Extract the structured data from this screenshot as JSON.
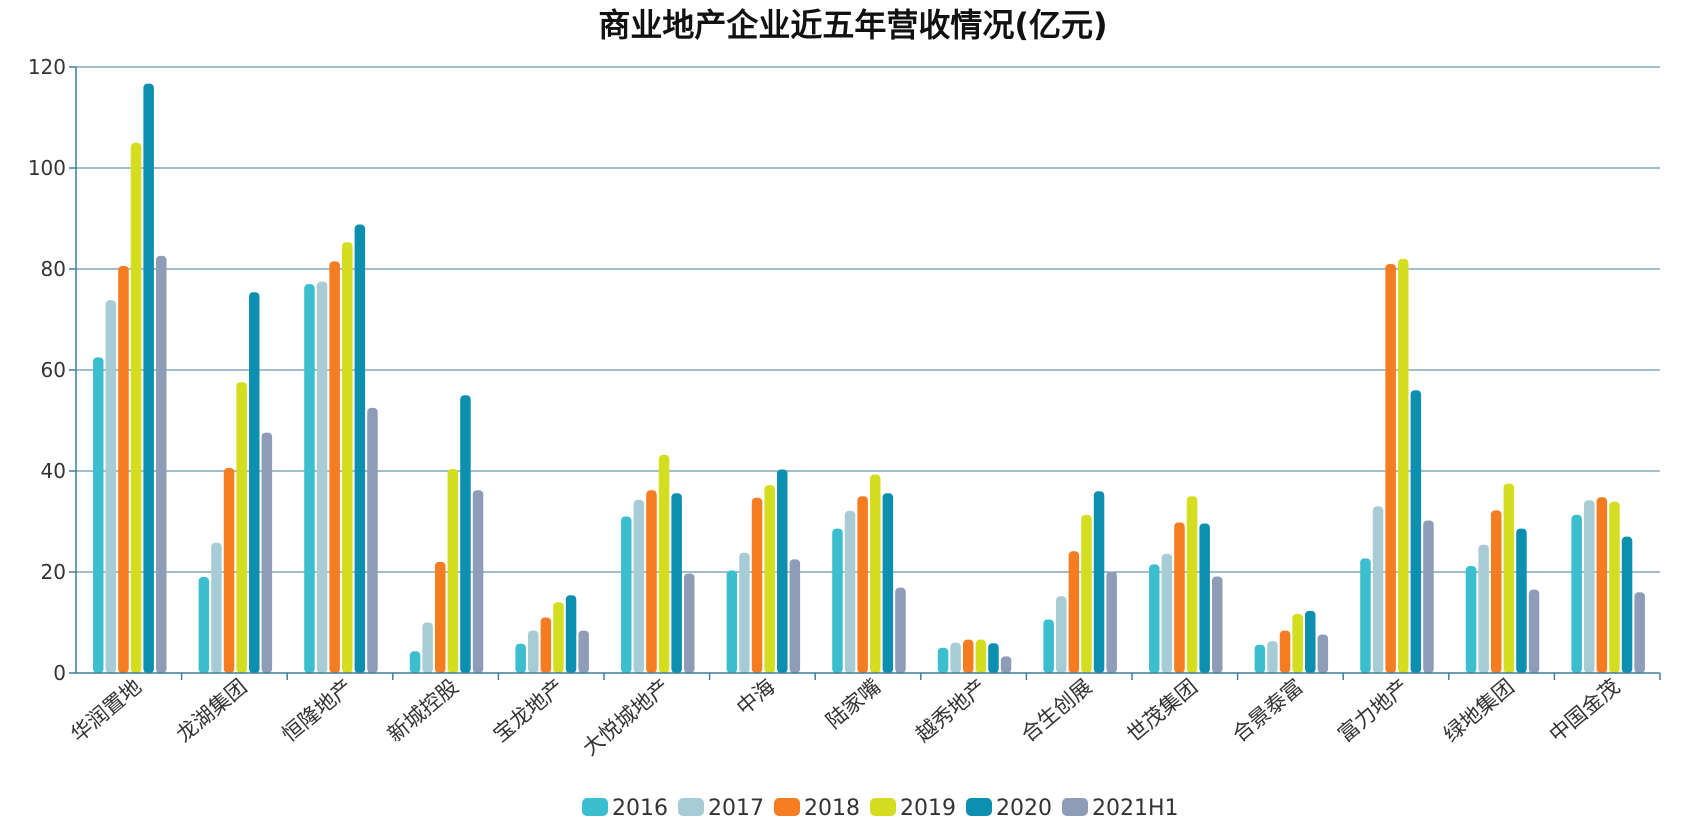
{
  "chart_data": {
    "type": "bar",
    "title": "商业地产企业近五年营收情况(亿元)",
    "xlabel": "",
    "ylabel": "",
    "ylim": [
      0,
      120
    ],
    "yticks": [
      0,
      20,
      40,
      60,
      80,
      100,
      120
    ],
    "grid": true,
    "legend_position": "bottom",
    "categories": [
      "华润置地",
      "龙湖集团",
      "恒隆地产",
      "新城控股",
      "宝龙地产",
      "大悦城地产",
      "中海",
      "陆家嘴",
      "越秀地产",
      "合生创展",
      "世茂集团",
      "合景泰富",
      "富力地产",
      "绿地集团",
      "中国金茂"
    ],
    "series": [
      {
        "name": "2016",
        "color": "#3bbfcf",
        "values": [
          62.5,
          19,
          77,
          4.3,
          5.8,
          31,
          20.3,
          28.6,
          5,
          10.6,
          21.5,
          5.6,
          22.7,
          21.2,
          31.3
        ]
      },
      {
        "name": "2017",
        "color": "#a8ccd6",
        "values": [
          73.8,
          25.8,
          77.5,
          10,
          8.4,
          34.3,
          23.8,
          32.1,
          6,
          15.2,
          23.6,
          6.3,
          33,
          25.4,
          34.2
        ]
      },
      {
        "name": "2018",
        "color": "#f57c20",
        "values": [
          80.6,
          40.6,
          81.5,
          22,
          11,
          36.2,
          34.7,
          35,
          6.6,
          24.1,
          29.8,
          8.4,
          81,
          32.2,
          34.8
        ]
      },
      {
        "name": "2019",
        "color": "#d4dd1f",
        "values": [
          105,
          57.6,
          85.3,
          40.4,
          14,
          43.2,
          37.2,
          39.3,
          6.6,
          31.3,
          35,
          11.7,
          82,
          37.5,
          33.9
        ]
      },
      {
        "name": "2020",
        "color": "#0d8fb0",
        "values": [
          116.7,
          75.4,
          88.8,
          55,
          15.4,
          35.6,
          40.3,
          35.6,
          5.9,
          36,
          29.6,
          12.3,
          56,
          28.6,
          27
        ]
      },
      {
        "name": "2021H1",
        "color": "#8f9cb7",
        "values": [
          82.6,
          47.6,
          52.5,
          36.2,
          8.4,
          19.7,
          22.5,
          16.9,
          3.3,
          20.1,
          19.1,
          7.6,
          30.2,
          16.5,
          16
        ]
      }
    ]
  }
}
